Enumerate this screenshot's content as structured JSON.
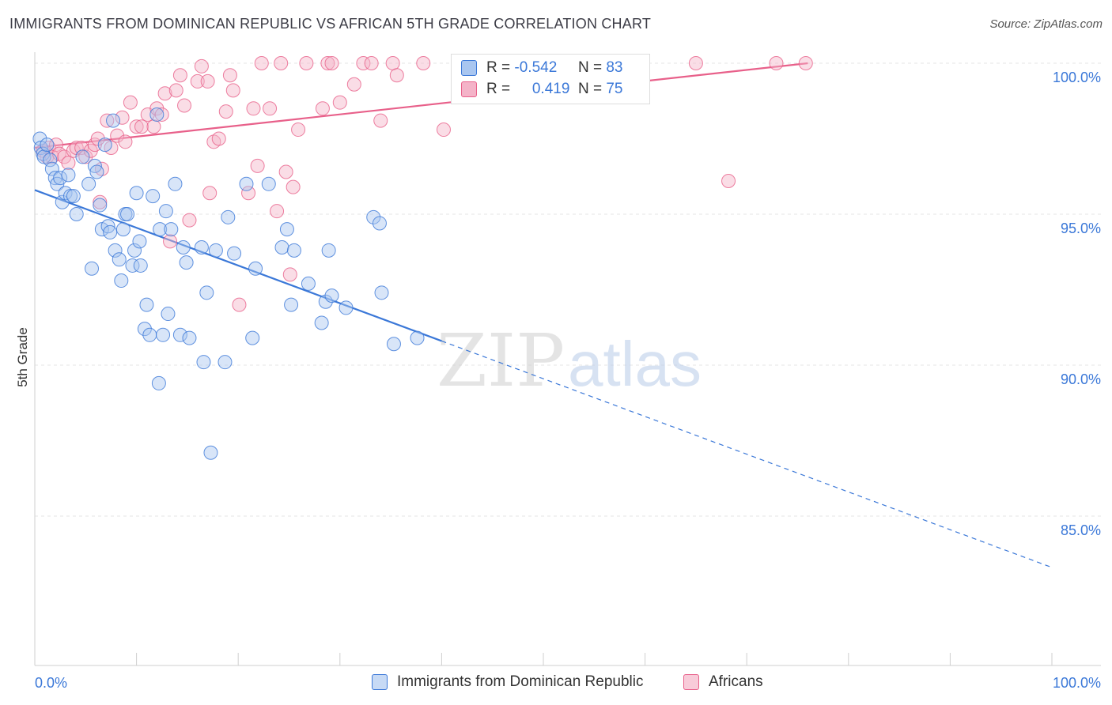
{
  "title": "IMMIGRANTS FROM DOMINICAN REPUBLIC VS AFRICAN 5TH GRADE CORRELATION CHART",
  "source": "Source: ZipAtlas.com",
  "watermark": {
    "zip": "ZIP",
    "atlas": "atlas"
  },
  "legend": {
    "series1": {
      "r_label": "R =",
      "r_value": "-0.542",
      "n_label": "N =",
      "n_value": "83"
    },
    "series2": {
      "r_label": "R =",
      "r_value": "0.419",
      "n_label": "N =",
      "n_value": "75"
    }
  },
  "chart_data": {
    "type": "scatter",
    "title": "IMMIGRANTS FROM DOMINICAN REPUBLIC VS AFRICAN 5TH GRADE CORRELATION CHART",
    "ylabel": "5th Grade",
    "xlabel": "",
    "xlim": [
      0,
      100
    ],
    "ylim": [
      80.5,
      100.8
    ],
    "x_tick_labels": [
      "0.0%",
      "100.0%"
    ],
    "y_ticks": [
      100.0,
      95.0,
      90.0,
      85.0
    ],
    "y_tick_labels": [
      "100.0%",
      "95.0%",
      "90.0%",
      "85.0%"
    ],
    "grid": true,
    "legend_position": "top-center",
    "colors": {
      "blue": "#3b78d8",
      "blue_fill": "#a9c6f0",
      "pink": "#e8608a",
      "pink_fill": "#f4b3c8"
    },
    "series": [
      {
        "name": "Immigrants from Dominican Republic",
        "color": "#3b78d8",
        "r": -0.542,
        "n": 83,
        "trend": {
          "x0": 0,
          "y0": 95.8,
          "x1": 40,
          "y1": 90.8,
          "dashed_to_x": 100,
          "dashed_to_y": 83.3
        },
        "points": [
          [
            0.5,
            97.5
          ],
          [
            0.6,
            97.2
          ],
          [
            0.8,
            97.0
          ],
          [
            0.9,
            96.9
          ],
          [
            1.2,
            97.3
          ],
          [
            1.5,
            96.8
          ],
          [
            1.7,
            96.5
          ],
          [
            2.0,
            96.2
          ],
          [
            2.2,
            96.0
          ],
          [
            2.5,
            96.2
          ],
          [
            2.7,
            95.4
          ],
          [
            3.0,
            95.7
          ],
          [
            3.3,
            96.3
          ],
          [
            3.5,
            95.6
          ],
          [
            3.8,
            95.6
          ],
          [
            4.1,
            95.0
          ],
          [
            4.7,
            96.9
          ],
          [
            5.3,
            96.0
          ],
          [
            5.6,
            93.2
          ],
          [
            5.9,
            96.6
          ],
          [
            6.1,
            96.4
          ],
          [
            6.4,
            95.3
          ],
          [
            6.6,
            94.5
          ],
          [
            6.9,
            97.3
          ],
          [
            7.2,
            94.6
          ],
          [
            7.4,
            94.4
          ],
          [
            7.7,
            98.1
          ],
          [
            7.9,
            93.8
          ],
          [
            8.3,
            93.5
          ],
          [
            8.5,
            92.8
          ],
          [
            8.7,
            94.5
          ],
          [
            8.9,
            95.0
          ],
          [
            9.1,
            95.0
          ],
          [
            9.6,
            93.3
          ],
          [
            9.8,
            93.8
          ],
          [
            10.0,
            95.7
          ],
          [
            10.3,
            94.1
          ],
          [
            10.4,
            93.3
          ],
          [
            10.8,
            91.2
          ],
          [
            11.0,
            92.0
          ],
          [
            11.3,
            91.0
          ],
          [
            11.6,
            95.6
          ],
          [
            12.0,
            98.3
          ],
          [
            12.2,
            89.4
          ],
          [
            12.3,
            94.5
          ],
          [
            12.6,
            91.0
          ],
          [
            12.9,
            95.1
          ],
          [
            13.1,
            91.7
          ],
          [
            13.4,
            94.5
          ],
          [
            13.8,
            96.0
          ],
          [
            14.3,
            91.0
          ],
          [
            14.6,
            93.9
          ],
          [
            14.9,
            93.4
          ],
          [
            15.2,
            90.9
          ],
          [
            16.4,
            93.9
          ],
          [
            16.6,
            90.1
          ],
          [
            16.9,
            92.4
          ],
          [
            17.3,
            87.1
          ],
          [
            17.8,
            93.8
          ],
          [
            18.7,
            90.1
          ],
          [
            19.0,
            94.9
          ],
          [
            19.6,
            93.7
          ],
          [
            20.8,
            96.0
          ],
          [
            21.4,
            90.9
          ],
          [
            21.7,
            93.2
          ],
          [
            23.0,
            96.0
          ],
          [
            24.3,
            93.9
          ],
          [
            24.8,
            94.5
          ],
          [
            25.2,
            92.0
          ],
          [
            25.5,
            93.8
          ],
          [
            26.9,
            92.7
          ],
          [
            28.2,
            91.4
          ],
          [
            28.6,
            92.1
          ],
          [
            28.9,
            93.8
          ],
          [
            29.2,
            92.3
          ],
          [
            30.6,
            91.9
          ],
          [
            33.3,
            94.9
          ],
          [
            33.9,
            94.7
          ],
          [
            34.1,
            92.4
          ],
          [
            35.3,
            90.7
          ],
          [
            37.6,
            90.9
          ],
          [
            43.1,
            100.0
          ],
          [
            56.0,
            100.0
          ]
        ]
      },
      {
        "name": "Africans",
        "color": "#e8608a",
        "r": 0.419,
        "n": 75,
        "trend": {
          "x0": 0,
          "y0": 97.2,
          "x1": 76,
          "y1": 100.0
        },
        "points": [
          [
            0.8,
            97.1
          ],
          [
            1.2,
            96.9
          ],
          [
            1.4,
            97.2
          ],
          [
            1.7,
            96.9
          ],
          [
            2.1,
            97.3
          ],
          [
            2.4,
            97.0
          ],
          [
            2.9,
            96.9
          ],
          [
            3.3,
            96.7
          ],
          [
            3.8,
            97.1
          ],
          [
            4.1,
            97.2
          ],
          [
            4.6,
            97.2
          ],
          [
            5.0,
            96.9
          ],
          [
            5.5,
            97.1
          ],
          [
            5.9,
            97.3
          ],
          [
            6.2,
            97.5
          ],
          [
            6.6,
            96.5
          ],
          [
            6.4,
            95.4
          ],
          [
            7.1,
            98.1
          ],
          [
            7.5,
            97.2
          ],
          [
            8.1,
            97.6
          ],
          [
            8.6,
            98.2
          ],
          [
            8.9,
            97.4
          ],
          [
            9.4,
            98.7
          ],
          [
            10.0,
            97.9
          ],
          [
            10.5,
            97.9
          ],
          [
            11.1,
            98.3
          ],
          [
            11.7,
            97.9
          ],
          [
            12.0,
            98.5
          ],
          [
            12.5,
            98.3
          ],
          [
            12.8,
            99.0
          ],
          [
            13.3,
            94.1
          ],
          [
            13.9,
            99.1
          ],
          [
            14.3,
            99.6
          ],
          [
            14.7,
            98.6
          ],
          [
            15.2,
            94.8
          ],
          [
            16.0,
            99.4
          ],
          [
            16.4,
            99.9
          ],
          [
            17.0,
            99.4
          ],
          [
            17.2,
            95.7
          ],
          [
            17.6,
            97.4
          ],
          [
            18.1,
            97.5
          ],
          [
            18.8,
            98.4
          ],
          [
            19.2,
            99.6
          ],
          [
            19.5,
            99.1
          ],
          [
            20.1,
            92.0
          ],
          [
            21.0,
            95.7
          ],
          [
            21.5,
            98.5
          ],
          [
            21.9,
            96.6
          ],
          [
            22.3,
            100.0
          ],
          [
            23.1,
            98.5
          ],
          [
            23.8,
            95.1
          ],
          [
            24.2,
            100.0
          ],
          [
            24.7,
            96.4
          ],
          [
            25.1,
            93.0
          ],
          [
            25.4,
            95.9
          ],
          [
            25.9,
            97.8
          ],
          [
            26.7,
            100.0
          ],
          [
            28.3,
            98.5
          ],
          [
            28.8,
            100.0
          ],
          [
            29.2,
            100.0
          ],
          [
            30.0,
            98.7
          ],
          [
            31.4,
            99.3
          ],
          [
            32.3,
            100.0
          ],
          [
            33.1,
            100.0
          ],
          [
            34.0,
            98.1
          ],
          [
            35.2,
            100.0
          ],
          [
            35.6,
            99.6
          ],
          [
            38.2,
            100.0
          ],
          [
            40.2,
            97.8
          ],
          [
            46.0,
            100.0
          ],
          [
            58.0,
            100.0
          ],
          [
            65.0,
            100.0
          ],
          [
            68.2,
            96.1
          ],
          [
            72.9,
            100.0
          ],
          [
            75.8,
            100.0
          ]
        ]
      }
    ]
  }
}
